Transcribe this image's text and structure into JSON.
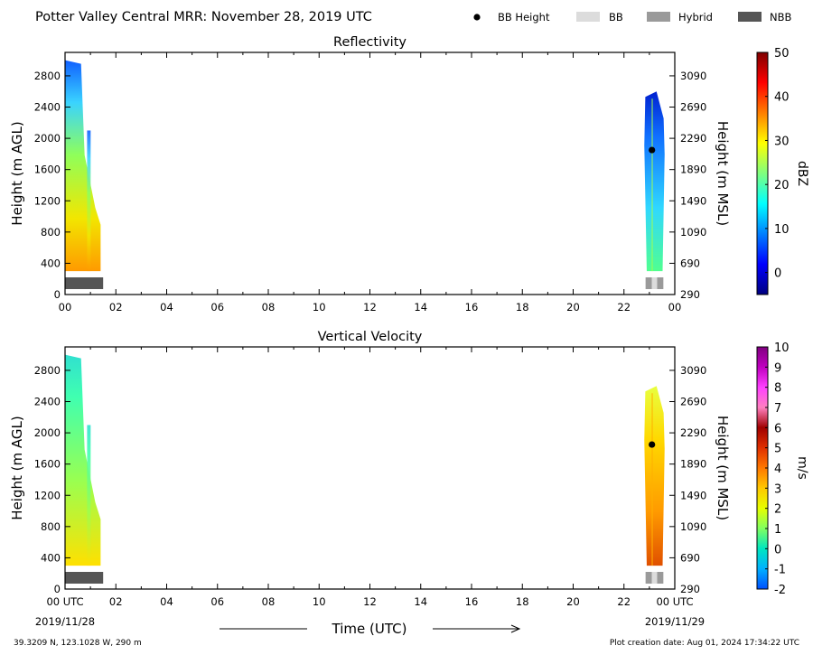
{
  "header": {
    "title": "Potter Valley Central MRR:  November 28, 2019 UTC",
    "legend": [
      {
        "label": "BB Height",
        "color": "#000000",
        "shape": "dot"
      },
      {
        "label": "BB",
        "color": "#dcdcdc",
        "shape": "box"
      },
      {
        "label": "Hybrid",
        "color": "#9a9a9a",
        "shape": "box"
      },
      {
        "label": "NBB",
        "color": "#555555",
        "shape": "box"
      }
    ]
  },
  "footer": {
    "location": "39.3209 N, 123.1028 W, 290 m",
    "creation": "Plot creation date: Aug 01, 2024 17:34:22 UTC",
    "time_label": "Time (UTC)",
    "start_date": "2019/11/28",
    "end_date": "2019/11/29"
  },
  "chart_data": [
    {
      "type": "heatmap",
      "title": "Reflectivity",
      "ylabel": "Height (m AGL)",
      "y2label": "Height (m MSL)",
      "colorbar_label": "dBZ",
      "xlim": [
        0,
        24
      ],
      "ylim": [
        0,
        3100
      ],
      "x_ticks": [
        "00",
        "02",
        "04",
        "06",
        "08",
        "10",
        "12",
        "14",
        "16",
        "18",
        "20",
        "22",
        "00"
      ],
      "y_ticks": [
        0,
        400,
        800,
        1200,
        1600,
        2000,
        2400,
        2800
      ],
      "y2_ticks": [
        290,
        690,
        1090,
        1490,
        1890,
        2290,
        2690,
        3090
      ],
      "colorbar_range": [
        -5,
        50
      ],
      "colorbar_ticks": [
        0,
        10,
        20,
        30,
        40,
        50
      ],
      "colorscale": [
        "#00007f",
        "#0000ff",
        "#007fff",
        "#00ffff",
        "#7fff7f",
        "#ffff00",
        "#ff7f00",
        "#ff0000",
        "#7f0000"
      ],
      "bb_height": [
        {
          "x": 23.1,
          "y": 1850
        }
      ],
      "bb_type_bar": [
        {
          "start": 0.0,
          "end": 1.5,
          "type": "NBB"
        },
        {
          "start": 22.85,
          "end": 23.1,
          "type": "Hybrid"
        },
        {
          "start": 23.3,
          "end": 23.55,
          "type": "Hybrid"
        }
      ],
      "echo_regions": [
        {
          "start": 0.0,
          "end": 1.4,
          "top": 3000
        },
        {
          "start": 22.8,
          "end": 23.6,
          "top": 2600
        }
      ]
    },
    {
      "type": "heatmap",
      "title": "Vertical Velocity",
      "ylabel": "Height (m AGL)",
      "y2label": "Height (m MSL)",
      "colorbar_label": "m/s",
      "xlim": [
        0,
        24
      ],
      "ylim": [
        0,
        3100
      ],
      "x_ticks": [
        "00 UTC",
        "02",
        "04",
        "06",
        "08",
        "10",
        "12",
        "14",
        "16",
        "18",
        "20",
        "22",
        "00 UTC"
      ],
      "y_ticks": [
        0,
        400,
        800,
        1200,
        1600,
        2000,
        2400,
        2800
      ],
      "y2_ticks": [
        290,
        690,
        1090,
        1490,
        1890,
        2290,
        2690,
        3090
      ],
      "colorbar_range": [
        -2,
        10
      ],
      "colorbar_ticks": [
        -2,
        -1,
        0,
        1,
        2,
        3,
        4,
        5,
        6,
        7,
        8,
        9,
        10
      ],
      "colorscale": [
        "#0050ff",
        "#00b0ff",
        "#00e6c0",
        "#80ff60",
        "#e6ff00",
        "#ffc800",
        "#ff7800",
        "#e03000",
        "#a00000",
        "#ff80c0",
        "#ff40ff",
        "#c000c0",
        "#800080"
      ],
      "bb_height": [
        {
          "x": 23.1,
          "y": 1850
        }
      ],
      "bb_type_bar": [
        {
          "start": 0.0,
          "end": 1.5,
          "type": "NBB"
        },
        {
          "start": 22.85,
          "end": 23.1,
          "type": "Hybrid"
        },
        {
          "start": 23.3,
          "end": 23.55,
          "type": "Hybrid"
        }
      ],
      "echo_regions": [
        {
          "start": 0.0,
          "end": 1.4,
          "top": 3000
        },
        {
          "start": 22.8,
          "end": 23.6,
          "top": 2600
        }
      ]
    }
  ]
}
